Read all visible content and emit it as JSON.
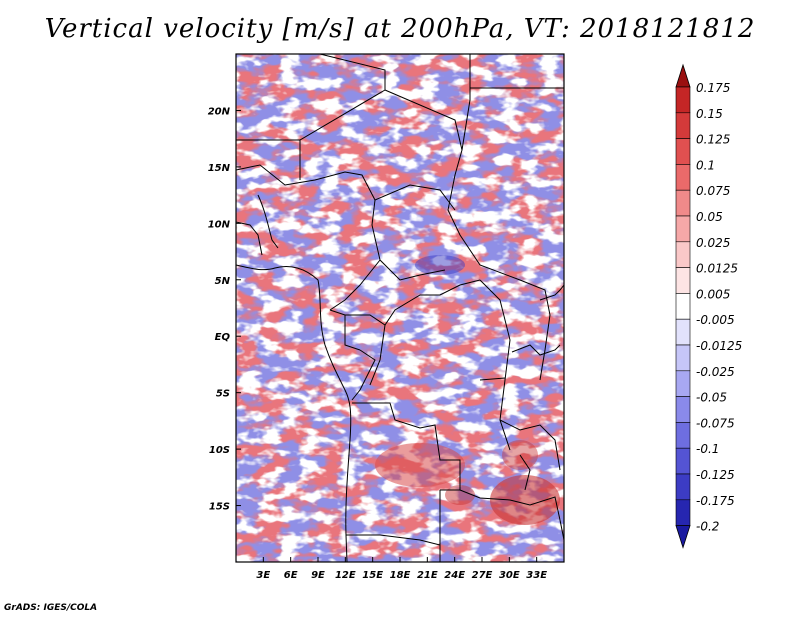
{
  "title": "Vertical velocity [m/s] at 200hPa, VT: 2018121812",
  "footer": "GrADS: IGES/COLA",
  "map": {
    "lon_range": [
      0,
      36
    ],
    "lat_range": [
      -20,
      25
    ],
    "lat_ticks": [
      {
        "lat": 20,
        "label": "20N"
      },
      {
        "lat": 15,
        "label": "15N"
      },
      {
        "lat": 10,
        "label": "10N"
      },
      {
        "lat": 5,
        "label": "5N"
      },
      {
        "lat": 0,
        "label": "EQ"
      },
      {
        "lat": -5,
        "label": "5S"
      },
      {
        "lat": -10,
        "label": "10S"
      },
      {
        "lat": -15,
        "label": "15S"
      }
    ],
    "lon_ticks": [
      {
        "lon": 3,
        "label": "3E"
      },
      {
        "lon": 6,
        "label": "6E"
      },
      {
        "lon": 9,
        "label": "9E"
      },
      {
        "lon": 12,
        "label": "12E"
      },
      {
        "lon": 15,
        "label": "15E"
      },
      {
        "lon": 18,
        "label": "18E"
      },
      {
        "lon": 21,
        "label": "21E"
      },
      {
        "lon": 24,
        "label": "24E"
      },
      {
        "lon": 27,
        "label": "27E"
      },
      {
        "lon": 30,
        "label": "30E"
      },
      {
        "lon": 33,
        "label": "33E"
      }
    ]
  },
  "colorbar": {
    "levels": [
      {
        "label": "0.175",
        "color": "#b01818"
      },
      {
        "label": "0.15",
        "color": "#c42626"
      },
      {
        "label": "0.125",
        "color": "#d43a3a"
      },
      {
        "label": "0.1",
        "color": "#e05050"
      },
      {
        "label": "0.075",
        "color": "#ea6a6a"
      },
      {
        "label": "0.05",
        "color": "#f08a8a"
      },
      {
        "label": "0.025",
        "color": "#f6a8a8"
      },
      {
        "label": "0.0125",
        "color": "#fac8c8"
      },
      {
        "label": "0.005",
        "color": "#fde4e4"
      },
      {
        "label": "-0.005",
        "color": "#ffffff"
      },
      {
        "label": "-0.0125",
        "color": "#e2e2fc"
      },
      {
        "label": "-0.025",
        "color": "#c6c6f8"
      },
      {
        "label": "-0.05",
        "color": "#a8a8f2"
      },
      {
        "label": "-0.075",
        "color": "#8a8aea"
      },
      {
        "label": "-0.1",
        "color": "#6e6ee0"
      },
      {
        "label": "-0.125",
        "color": "#5454d4"
      },
      {
        "label": "-0.175",
        "color": "#3c3cc4"
      },
      {
        "label": "-0.2",
        "color": "#2626b0"
      }
    ],
    "top_color": "#9a1010",
    "bottom_color": "#1a1aa0"
  }
}
